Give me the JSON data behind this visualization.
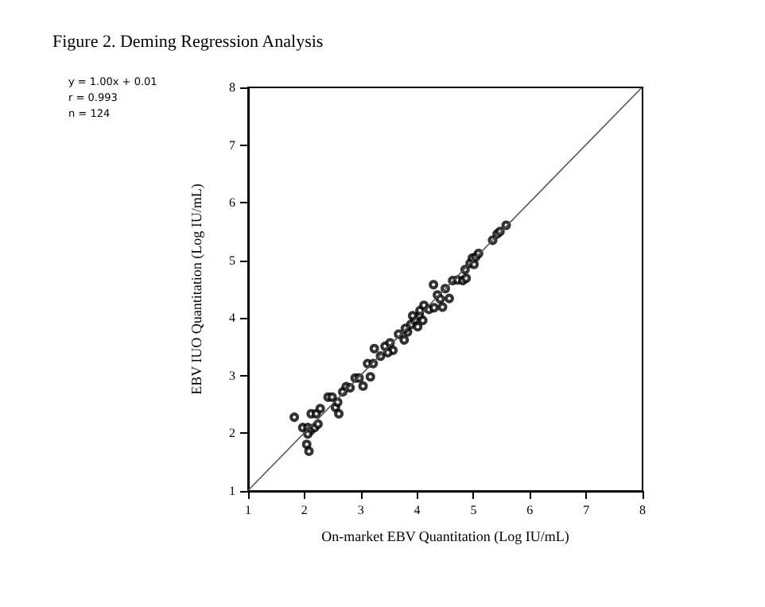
{
  "chart_data": {
    "type": "scatter",
    "title": "Figure 2. Deming Regression Analysis",
    "xlabel": "On-market EBV Quantitation (Log IU/mL)",
    "ylabel": "EBV IUO Quantitation (Log IU/mL)",
    "annotations": [
      "y = 1.00x + 0.01",
      "r = 0.993",
      "n = 124"
    ],
    "xlim": [
      1,
      8
    ],
    "ylim": [
      1,
      8
    ],
    "xticks": [
      1,
      2,
      3,
      4,
      5,
      6,
      7,
      8
    ],
    "yticks": [
      1,
      2,
      3,
      4,
      5,
      6,
      7,
      8
    ],
    "grid": false,
    "series": [
      {
        "color": "#000000",
        "marker": "circle",
        "x": [
          1.82,
          1.97,
          2.06,
          2.11,
          2.06,
          2.04,
          2.08,
          2.18,
          2.24,
          2.12,
          2.21,
          2.28,
          2.42,
          2.49,
          2.55,
          2.61,
          2.59,
          2.68,
          2.74,
          2.81,
          2.9,
          2.97,
          3.04,
          3.17,
          3.12,
          3.22,
          3.24,
          3.35,
          3.43,
          3.52,
          3.57,
          3.48,
          3.67,
          3.77,
          3.83,
          3.89,
          3.96,
          4.04,
          4.01,
          4.05,
          4.12,
          4.21,
          4.3,
          4.29,
          4.36,
          4.41,
          4.45,
          4.5,
          4.57,
          4.63,
          4.72,
          4.81,
          4.87,
          4.85,
          4.94,
          4.98,
          5.04,
          5.09,
          5.01,
          5.34,
          5.42,
          5.47,
          5.58,
          3.92,
          3.79,
          4.1
        ],
        "values": [
          2.28,
          2.1,
          2.1,
          2.05,
          1.99,
          1.81,
          1.69,
          2.1,
          2.16,
          2.34,
          2.34,
          2.43,
          2.63,
          2.63,
          2.45,
          2.34,
          2.54,
          2.72,
          2.81,
          2.79,
          2.96,
          2.96,
          2.82,
          2.98,
          3.21,
          3.21,
          3.47,
          3.34,
          3.51,
          3.57,
          3.44,
          3.4,
          3.72,
          3.62,
          3.76,
          3.89,
          3.97,
          4.04,
          3.85,
          4.13,
          4.22,
          4.15,
          4.18,
          4.58,
          4.4,
          4.33,
          4.19,
          4.51,
          4.34,
          4.65,
          4.66,
          4.65,
          4.69,
          4.84,
          4.95,
          5.04,
          5.06,
          5.12,
          4.93,
          5.35,
          5.46,
          5.5,
          5.61,
          4.04,
          3.82,
          3.96
        ]
      },
      {
        "type": "line",
        "marker": "none",
        "color": "#555555",
        "x": [
          1,
          7.99
        ],
        "values": [
          1.01,
          8
        ]
      }
    ]
  }
}
